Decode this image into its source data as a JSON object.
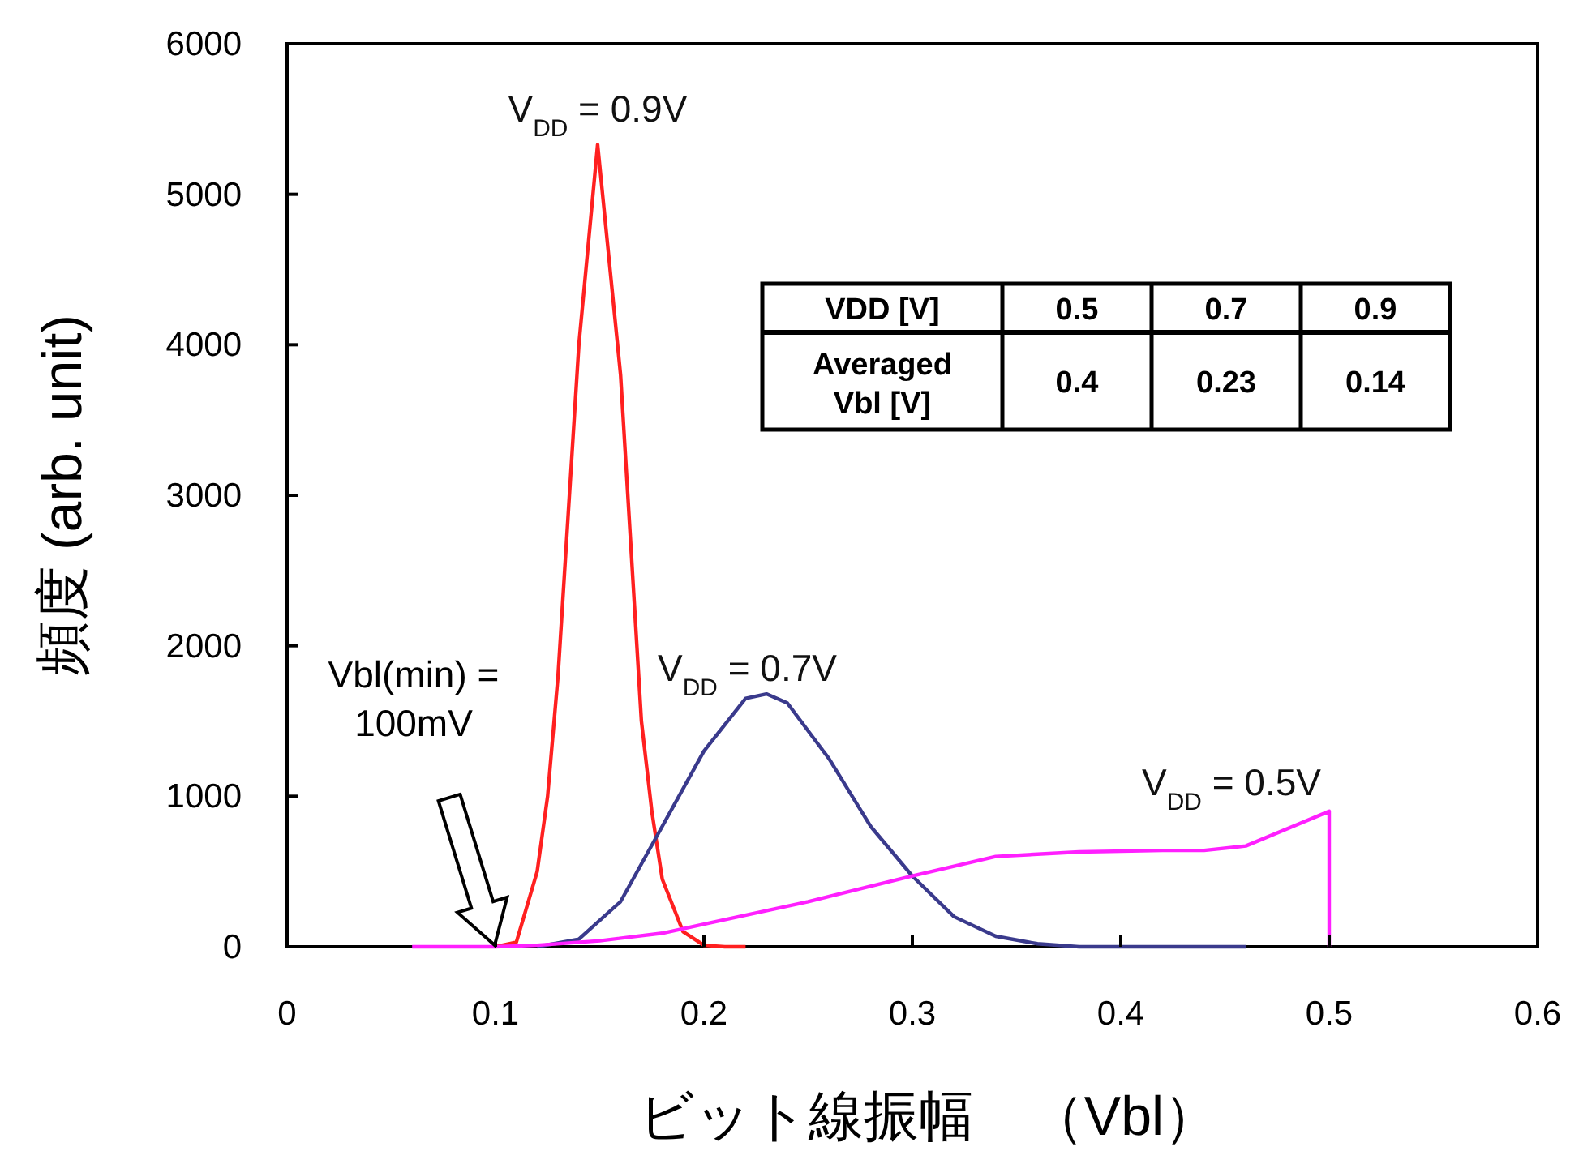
{
  "chart_data": {
    "type": "line",
    "xlabel": "ビット線振幅　（Vbl）",
    "ylabel": "頻度 (arb. unit)",
    "xlim": [
      0,
      0.6
    ],
    "xticks": [
      0,
      0.1,
      0.2,
      0.3,
      0.4,
      0.5,
      0.6
    ],
    "ylim": [
      0,
      6000
    ],
    "yticks": [
      0,
      1000,
      2000,
      3000,
      4000,
      5000,
      6000
    ],
    "grid": false,
    "marker": "none",
    "line_style": "solid",
    "series": [
      {
        "name": "V$_{DD}$ = 0.9V",
        "color": "#ff2020",
        "x": [
          0.1,
          0.11,
          0.12,
          0.125,
          0.13,
          0.14,
          0.149,
          0.16,
          0.17,
          0.175,
          0.18,
          0.19,
          0.2,
          0.21,
          0.22
        ],
        "values": [
          0,
          30,
          500,
          1000,
          1800,
          4000,
          5330,
          3800,
          1500,
          900,
          450,
          100,
          10,
          0,
          0
        ]
      },
      {
        "name": "V$_{DD}$ = 0.7V",
        "color": "#3a3a8c",
        "x": [
          0.12,
          0.14,
          0.16,
          0.18,
          0.2,
          0.22,
          0.23,
          0.24,
          0.26,
          0.28,
          0.3,
          0.32,
          0.34,
          0.36,
          0.38,
          0.46
        ],
        "values": [
          0,
          50,
          300,
          800,
          1300,
          1650,
          1680,
          1620,
          1250,
          800,
          470,
          200,
          70,
          20,
          0,
          0
        ]
      },
      {
        "name": "V$_{DD}$ = 0.5V",
        "color": "#ff20ff",
        "x": [
          0.06,
          0.1,
          0.12,
          0.15,
          0.18,
          0.2,
          0.25,
          0.3,
          0.34,
          0.38,
          0.42,
          0.44,
          0.46,
          0.5,
          0.5
        ],
        "values": [
          0,
          0,
          10,
          40,
          90,
          150,
          300,
          470,
          600,
          630,
          640,
          640,
          670,
          900,
          0
        ]
      }
    ],
    "annotations": [
      "Vbl(min) = 100mV",
      "VDD [V]",
      "0.5",
      "0.7",
      "0.9",
      "Averaged Vbl [V]",
      "0.4",
      "0.23",
      "0.14"
    ]
  }
}
